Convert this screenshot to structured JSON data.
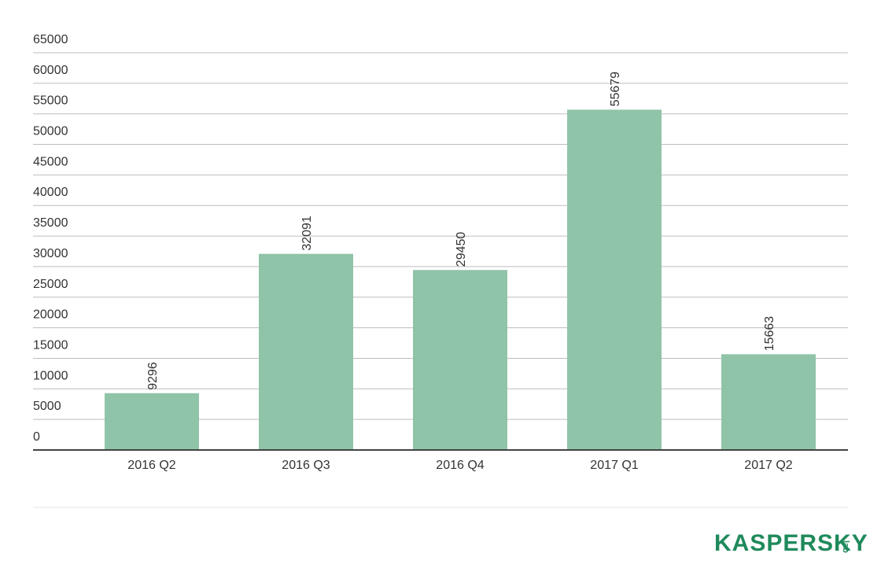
{
  "chart_data": {
    "type": "bar",
    "categories": [
      "2016 Q2",
      "2016 Q3",
      "2016 Q4",
      "2017 Q1",
      "2017 Q2"
    ],
    "values": [
      9296,
      32091,
      29450,
      55679,
      15663
    ],
    "color": "#8fc4a8",
    "ylim": [
      0,
      65000
    ],
    "yticks": [
      0,
      5000,
      10000,
      15000,
      20000,
      25000,
      30000,
      35000,
      40000,
      45000,
      50000,
      55000,
      60000,
      65000
    ],
    "grid": true,
    "logo": "KASPERSKY",
    "logo_suffix": "lab"
  }
}
